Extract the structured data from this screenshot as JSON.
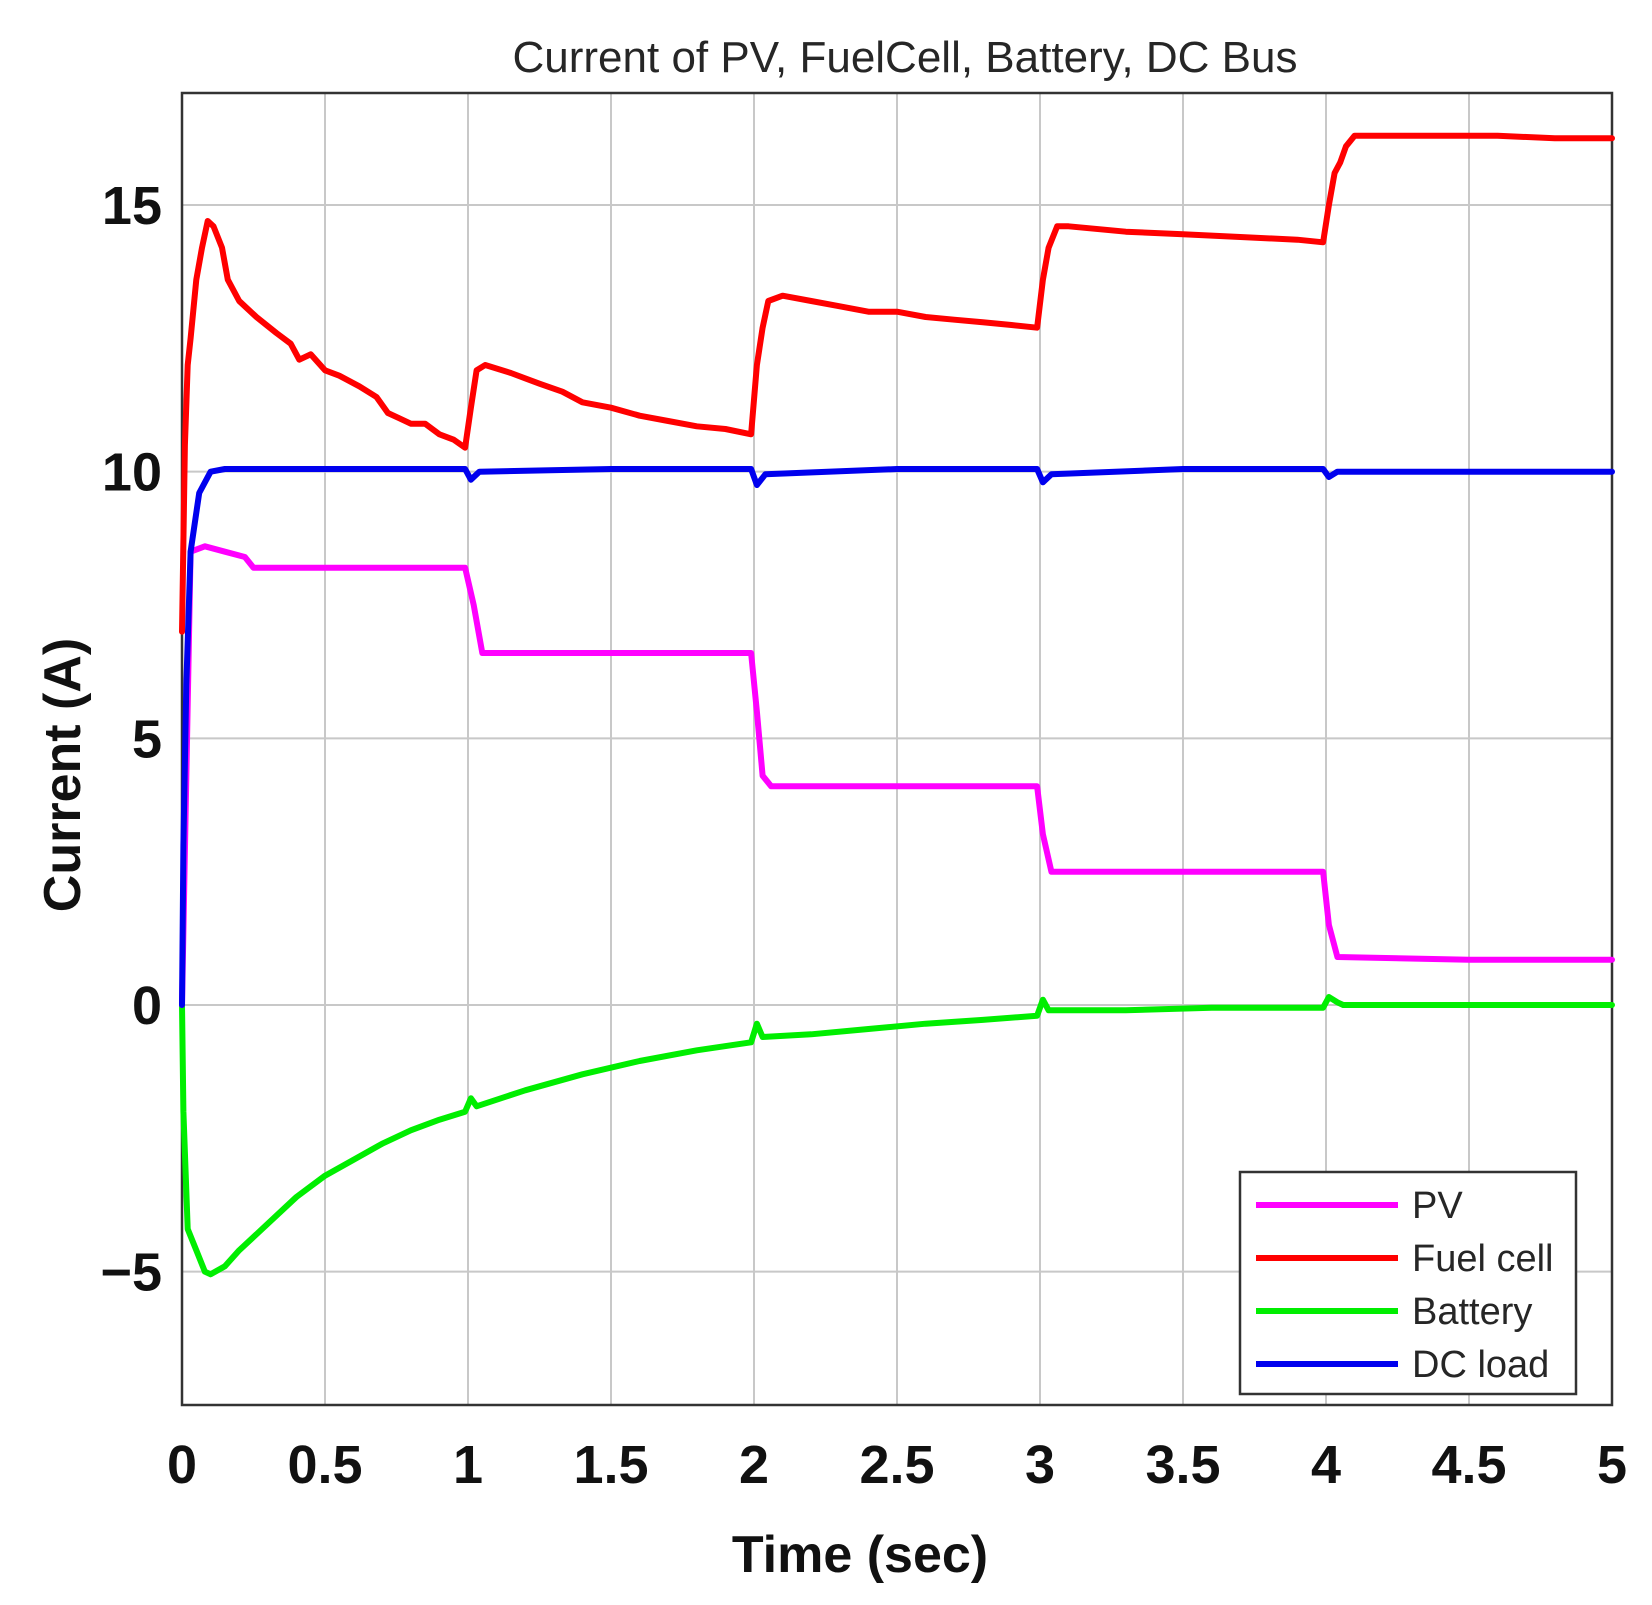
{
  "chart_data": {
    "type": "line",
    "title": "Current of PV, FuelCell, Battery, DC Bus",
    "xlabel": "Time (sec)",
    "ylabel": "Current (A)",
    "xlim": [
      0,
      5
    ],
    "ylim": [
      -7.5,
      17.1
    ],
    "x_ticks": [
      "0",
      "0.5",
      "1",
      "1.5",
      "2",
      "2.5",
      "3",
      "3.5",
      "4",
      "4.5",
      "5"
    ],
    "y_ticks": [
      "−5",
      "0",
      "5",
      "10",
      "15"
    ],
    "grid": true,
    "legend_position": "bottom-right",
    "series": [
      {
        "name": "PV",
        "color": "#ff00ff",
        "points": [
          [
            0,
            0
          ],
          [
            0.03,
            8.5
          ],
          [
            0.08,
            8.6
          ],
          [
            0.15,
            8.5
          ],
          [
            0.22,
            8.4
          ],
          [
            0.25,
            8.2
          ],
          [
            0.4,
            8.2
          ],
          [
            0.6,
            8.2
          ],
          [
            0.8,
            8.2
          ],
          [
            0.99,
            8.2
          ],
          [
            1.02,
            7.5
          ],
          [
            1.05,
            6.6
          ],
          [
            1.3,
            6.6
          ],
          [
            1.6,
            6.6
          ],
          [
            1.99,
            6.6
          ],
          [
            2.01,
            5.5
          ],
          [
            2.03,
            4.3
          ],
          [
            2.06,
            4.1
          ],
          [
            2.5,
            4.1
          ],
          [
            2.99,
            4.1
          ],
          [
            3.01,
            3.2
          ],
          [
            3.04,
            2.5
          ],
          [
            3.5,
            2.5
          ],
          [
            3.99,
            2.5
          ],
          [
            4.01,
            1.5
          ],
          [
            4.04,
            0.9
          ],
          [
            4.5,
            0.85
          ],
          [
            5,
            0.85
          ]
        ]
      },
      {
        "name": "Fuel cell",
        "color": "#ff0000",
        "points": [
          [
            0,
            7.0
          ],
          [
            0.01,
            10.5
          ],
          [
            0.02,
            12.0
          ],
          [
            0.03,
            12.5
          ],
          [
            0.05,
            13.6
          ],
          [
            0.07,
            14.2
          ],
          [
            0.09,
            14.7
          ],
          [
            0.11,
            14.6
          ],
          [
            0.14,
            14.2
          ],
          [
            0.16,
            13.6
          ],
          [
            0.2,
            13.2
          ],
          [
            0.26,
            12.9
          ],
          [
            0.33,
            12.6
          ],
          [
            0.38,
            12.4
          ],
          [
            0.41,
            12.1
          ],
          [
            0.45,
            12.2
          ],
          [
            0.5,
            11.9
          ],
          [
            0.55,
            11.8
          ],
          [
            0.62,
            11.6
          ],
          [
            0.68,
            11.4
          ],
          [
            0.72,
            11.1
          ],
          [
            0.76,
            11.0
          ],
          [
            0.8,
            10.9
          ],
          [
            0.85,
            10.9
          ],
          [
            0.9,
            10.7
          ],
          [
            0.95,
            10.6
          ],
          [
            0.99,
            10.45
          ],
          [
            1.01,
            11.2
          ],
          [
            1.03,
            11.9
          ],
          [
            1.06,
            12.0
          ],
          [
            1.15,
            11.85
          ],
          [
            1.25,
            11.65
          ],
          [
            1.33,
            11.5
          ],
          [
            1.4,
            11.3
          ],
          [
            1.5,
            11.2
          ],
          [
            1.6,
            11.05
          ],
          [
            1.7,
            10.95
          ],
          [
            1.8,
            10.85
          ],
          [
            1.9,
            10.8
          ],
          [
            1.99,
            10.7
          ],
          [
            2.01,
            12.0
          ],
          [
            2.03,
            12.7
          ],
          [
            2.05,
            13.2
          ],
          [
            2.1,
            13.3
          ],
          [
            2.2,
            13.2
          ],
          [
            2.3,
            13.1
          ],
          [
            2.4,
            13.0
          ],
          [
            2.5,
            13.0
          ],
          [
            2.6,
            12.9
          ],
          [
            2.7,
            12.85
          ],
          [
            2.8,
            12.8
          ],
          [
            2.9,
            12.75
          ],
          [
            2.99,
            12.7
          ],
          [
            3.01,
            13.6
          ],
          [
            3.03,
            14.2
          ],
          [
            3.06,
            14.6
          ],
          [
            3.1,
            14.6
          ],
          [
            3.3,
            14.5
          ],
          [
            3.5,
            14.45
          ],
          [
            3.7,
            14.4
          ],
          [
            3.9,
            14.35
          ],
          [
            3.99,
            14.3
          ],
          [
            4.01,
            15.0
          ],
          [
            4.03,
            15.6
          ],
          [
            4.05,
            15.8
          ],
          [
            4.07,
            16.1
          ],
          [
            4.1,
            16.3
          ],
          [
            4.3,
            16.3
          ],
          [
            4.6,
            16.3
          ],
          [
            4.8,
            16.25
          ],
          [
            5,
            16.25
          ]
        ]
      },
      {
        "name": "Battery",
        "color": "#00ee00",
        "points": [
          [
            0,
            0
          ],
          [
            0.005,
            -2.0
          ],
          [
            0.02,
            -4.2
          ],
          [
            0.05,
            -4.6
          ],
          [
            0.08,
            -5.0
          ],
          [
            0.1,
            -5.05
          ],
          [
            0.15,
            -4.9
          ],
          [
            0.2,
            -4.6
          ],
          [
            0.3,
            -4.1
          ],
          [
            0.4,
            -3.6
          ],
          [
            0.5,
            -3.2
          ],
          [
            0.6,
            -2.9
          ],
          [
            0.7,
            -2.6
          ],
          [
            0.8,
            -2.35
          ],
          [
            0.9,
            -2.15
          ],
          [
            0.99,
            -2.0
          ],
          [
            1.01,
            -1.75
          ],
          [
            1.03,
            -1.9
          ],
          [
            1.2,
            -1.6
          ],
          [
            1.4,
            -1.3
          ],
          [
            1.6,
            -1.05
          ],
          [
            1.8,
            -0.85
          ],
          [
            1.99,
            -0.7
          ],
          [
            2.01,
            -0.35
          ],
          [
            2.03,
            -0.6
          ],
          [
            2.2,
            -0.55
          ],
          [
            2.4,
            -0.45
          ],
          [
            2.6,
            -0.35
          ],
          [
            2.8,
            -0.28
          ],
          [
            2.99,
            -0.2
          ],
          [
            3.01,
            0.1
          ],
          [
            3.03,
            -0.1
          ],
          [
            3.3,
            -0.1
          ],
          [
            3.6,
            -0.05
          ],
          [
            3.99,
            -0.05
          ],
          [
            4.01,
            0.15
          ],
          [
            4.04,
            0.05
          ],
          [
            4.06,
            0.0
          ],
          [
            4.5,
            0.0
          ],
          [
            5,
            0.0
          ]
        ]
      },
      {
        "name": "DC load",
        "color": "#0000ee",
        "points": [
          [
            0,
            0
          ],
          [
            0.005,
            3.0
          ],
          [
            0.015,
            6.0
          ],
          [
            0.03,
            8.5
          ],
          [
            0.06,
            9.6
          ],
          [
            0.1,
            10.0
          ],
          [
            0.15,
            10.05
          ],
          [
            0.3,
            10.05
          ],
          [
            0.6,
            10.05
          ],
          [
            0.99,
            10.05
          ],
          [
            1.01,
            9.85
          ],
          [
            1.04,
            10.0
          ],
          [
            1.5,
            10.05
          ],
          [
            1.99,
            10.05
          ],
          [
            2.01,
            9.75
          ],
          [
            2.04,
            9.95
          ],
          [
            2.5,
            10.05
          ],
          [
            2.99,
            10.05
          ],
          [
            3.01,
            9.8
          ],
          [
            3.04,
            9.95
          ],
          [
            3.5,
            10.05
          ],
          [
            3.99,
            10.05
          ],
          [
            4.01,
            9.9
          ],
          [
            4.04,
            10.0
          ],
          [
            4.5,
            10.0
          ],
          [
            5,
            10.0
          ]
        ]
      }
    ]
  }
}
